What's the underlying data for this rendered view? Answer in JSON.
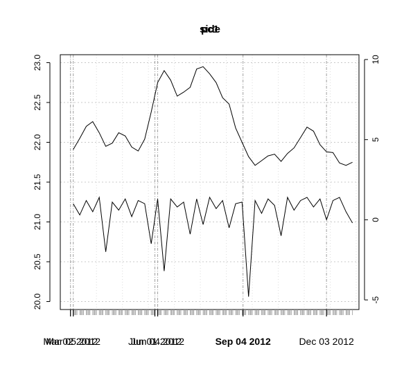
{
  "chart_data": {
    "type": "line",
    "title_overlap": [
      "pc1",
      "side"
    ],
    "grid": true,
    "x_range": [
      "2012-02-20",
      "2013-01-07"
    ],
    "x_tick_labels": [
      {
        "date": "2012-03-02",
        "label": "Mar 02 2012",
        "bold": false
      },
      {
        "date": "2012-03-05",
        "label": "Mar 05 2012",
        "bold": false
      },
      {
        "date": "2012-06-01",
        "label": "Jun 01 2012",
        "bold": false
      },
      {
        "date": "2012-06-04",
        "label": "Jun 04 2012",
        "bold": false
      },
      {
        "date": "2012-09-04",
        "label": "Sep 04 2012",
        "bold": true
      },
      {
        "date": "2012-12-03",
        "label": "Dec 03 2012",
        "bold": false
      }
    ],
    "left_axis": {
      "ylim": [
        19.9,
        23.1
      ],
      "ticks": [
        20.0,
        20.5,
        21.0,
        21.5,
        22.0,
        22.5,
        23.0
      ]
    },
    "right_axis": {
      "ylim": [
        -5.6,
        10.3
      ],
      "ticks": [
        -5,
        0,
        5,
        10
      ]
    },
    "series": [
      {
        "axis": "left",
        "x": [
          "2012-03-05",
          "2012-03-12",
          "2012-03-19",
          "2012-03-26",
          "2012-04-02",
          "2012-04-09",
          "2012-04-16",
          "2012-04-23",
          "2012-04-30",
          "2012-05-07",
          "2012-05-14",
          "2012-05-21",
          "2012-05-28",
          "2012-06-04",
          "2012-06-11",
          "2012-06-18",
          "2012-06-25",
          "2012-07-02",
          "2012-07-09",
          "2012-07-16",
          "2012-07-23",
          "2012-07-30",
          "2012-08-06",
          "2012-08-13",
          "2012-08-20",
          "2012-08-27",
          "2012-09-03",
          "2012-09-10",
          "2012-09-17",
          "2012-09-24",
          "2012-10-01",
          "2012-10-08",
          "2012-10-15",
          "2012-10-22",
          "2012-10-29",
          "2012-11-05",
          "2012-11-12",
          "2012-11-19",
          "2012-11-26",
          "2012-12-03",
          "2012-12-10",
          "2012-12-17",
          "2012-12-24",
          "2012-12-31"
        ],
        "values": [
          21.91,
          22.05,
          22.2,
          22.26,
          22.12,
          21.95,
          21.99,
          22.12,
          22.08,
          21.94,
          21.89,
          22.04,
          22.38,
          22.75,
          22.9,
          22.78,
          22.58,
          22.63,
          22.69,
          22.92,
          22.95,
          22.86,
          22.75,
          22.56,
          22.48,
          22.18,
          22.0,
          21.82,
          21.71,
          21.77,
          21.83,
          21.85,
          21.76,
          21.86,
          21.93,
          22.06,
          22.19,
          22.14,
          21.97,
          21.88,
          21.87,
          21.74,
          21.71,
          21.75
        ]
      },
      {
        "axis": "right",
        "x": [
          "2012-03-05",
          "2012-03-12",
          "2012-03-19",
          "2012-03-26",
          "2012-04-02",
          "2012-04-09",
          "2012-04-16",
          "2012-04-23",
          "2012-04-30",
          "2012-05-07",
          "2012-05-14",
          "2012-05-21",
          "2012-05-28",
          "2012-06-04",
          "2012-06-11",
          "2012-06-18",
          "2012-06-25",
          "2012-07-02",
          "2012-07-09",
          "2012-07-16",
          "2012-07-23",
          "2012-07-30",
          "2012-08-06",
          "2012-08-13",
          "2012-08-20",
          "2012-08-27",
          "2012-09-03",
          "2012-09-10",
          "2012-09-17",
          "2012-09-24",
          "2012-10-01",
          "2012-10-08",
          "2012-10-15",
          "2012-10-22",
          "2012-10-29",
          "2012-11-05",
          "2012-11-12",
          "2012-11-19",
          "2012-11-26",
          "2012-12-03",
          "2012-12-10",
          "2012-12-17",
          "2012-12-24",
          "2012-12-31"
        ],
        "values": [
          1.0,
          0.3,
          1.2,
          0.5,
          1.4,
          -2.0,
          1.1,
          0.6,
          1.3,
          0.2,
          1.2,
          1.0,
          -1.5,
          1.3,
          -3.2,
          1.3,
          0.8,
          1.1,
          -0.9,
          1.3,
          -0.3,
          1.4,
          0.7,
          1.2,
          -0.5,
          1.0,
          1.1,
          -4.8,
          1.2,
          0.4,
          1.3,
          0.9,
          -1.0,
          1.4,
          0.6,
          1.2,
          1.4,
          0.8,
          1.3,
          0.0,
          1.2,
          1.4,
          0.5,
          -0.2
        ]
      }
    ]
  }
}
